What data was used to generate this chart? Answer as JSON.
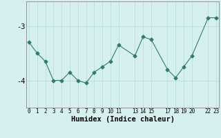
{
  "x": [
    0,
    1,
    2,
    3,
    4,
    5,
    6,
    7,
    8,
    9,
    10,
    11,
    13,
    14,
    15,
    17,
    18,
    19,
    20,
    22,
    23
  ],
  "y": [
    -3.3,
    -3.5,
    -3.65,
    -4.0,
    -4.0,
    -3.85,
    -4.0,
    -4.05,
    -3.85,
    -3.75,
    -3.65,
    -3.35,
    -3.55,
    -3.2,
    -3.25,
    -3.8,
    -3.95,
    -3.75,
    -3.55,
    -2.85,
    -2.85
  ],
  "line_color": "#2d7d6f",
  "marker": "D",
  "marker_size": 2.5,
  "bg_color": "#d6f0ef",
  "grid_color": "#b8dede",
  "xlabel": "Humidex (Indice chaleur)",
  "xticks": [
    0,
    1,
    2,
    3,
    4,
    5,
    6,
    7,
    8,
    9,
    10,
    11,
    13,
    14,
    15,
    17,
    18,
    19,
    20,
    22,
    23
  ],
  "yticks": [
    -4,
    -3
  ],
  "ylim": [
    -4.5,
    -2.55
  ],
  "xlim": [
    -0.3,
    23.3
  ]
}
